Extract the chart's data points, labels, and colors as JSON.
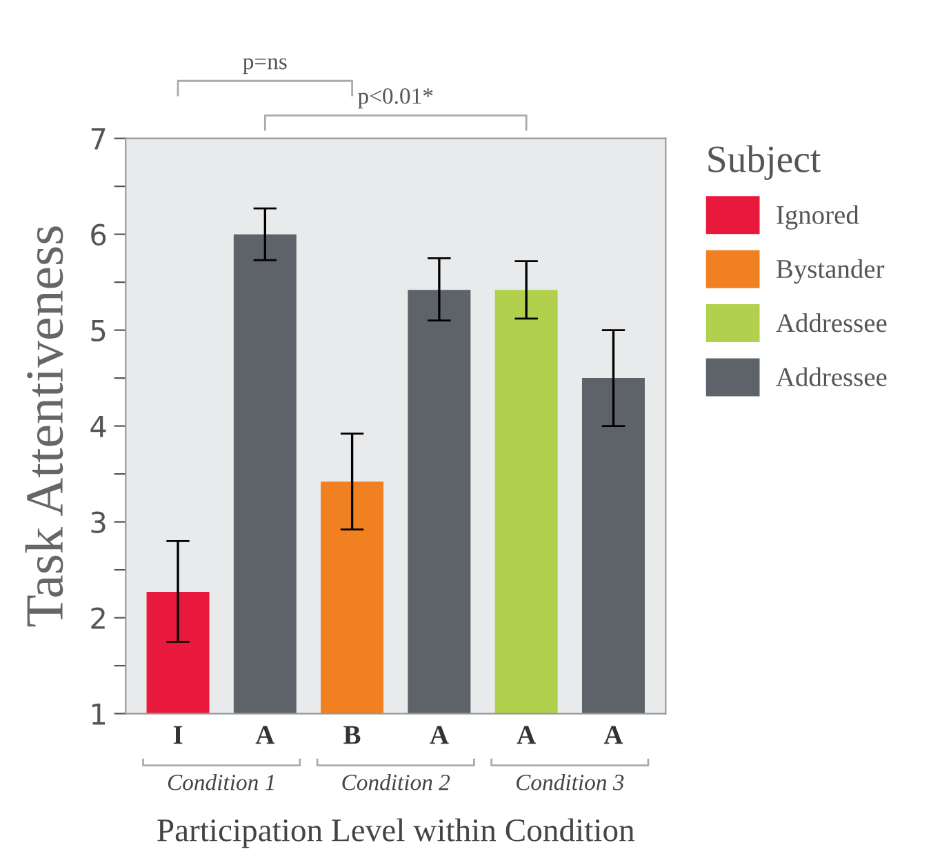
{
  "chart_data": {
    "type": "bar",
    "categories": [
      "I",
      "A",
      "B",
      "A",
      "A",
      "A"
    ],
    "series": [
      {
        "name": "Ignored",
        "color": "#e8193c",
        "values": [
          2.27,
          null,
          null,
          null,
          null,
          null
        ],
        "errors": [
          [
            1.75,
            2.8
          ],
          null,
          null,
          null,
          null,
          null
        ]
      },
      {
        "name": "Bystander",
        "color": "#f08020",
        "values": [
          null,
          null,
          3.42,
          null,
          null,
          null
        ],
        "errors": [
          null,
          null,
          [
            2.92,
            3.92
          ],
          null,
          null,
          null
        ]
      },
      {
        "name": "Addressee",
        "color": "#b0d04e",
        "values": [
          null,
          null,
          null,
          null,
          5.42,
          null
        ],
        "errors": [
          null,
          null,
          null,
          null,
          [
            5.12,
            5.72
          ],
          null
        ]
      },
      {
        "name": "Addressee",
        "color": "#5e6369",
        "values": [
          null,
          6.0,
          null,
          5.42,
          null,
          4.5
        ],
        "errors": [
          null,
          [
            5.73,
            6.27
          ],
          null,
          [
            5.1,
            5.75
          ],
          null,
          [
            4.0,
            5.0
          ]
        ]
      }
    ],
    "ylabel": "Task Attentiveness",
    "xlabel": "Participation Level within Condition",
    "legend_title": "Subject",
    "ylim": [
      1,
      7
    ],
    "yticks": [
      1,
      {
        "value": 1.5,
        "label": null
      },
      2,
      {
        "value": 2.5,
        "label": null
      },
      3,
      {
        "value": 3.5,
        "label": null
      },
      4,
      {
        "value": 4.5,
        "label": null
      },
      5,
      {
        "value": 5.5,
        "label": null
      },
      6,
      {
        "value": 6.5,
        "label": null
      },
      7
    ],
    "annotations": [
      "Condition 1",
      "Condition 2",
      "Condition 3",
      "p=ns",
      "p<0.01*"
    ],
    "legend": "right",
    "grid": false
  }
}
